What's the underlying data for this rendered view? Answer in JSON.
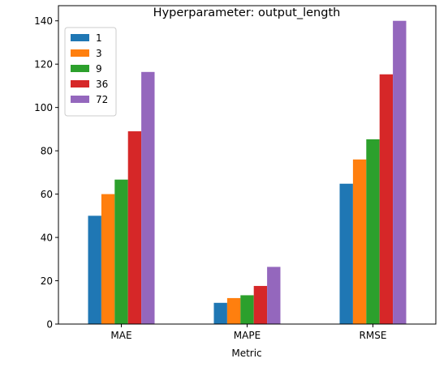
{
  "chart_data": {
    "type": "bar",
    "title": "Hyperparameter: output_length",
    "xlabel": "Metric",
    "ylabel": "",
    "categories": [
      "MAE",
      "MAPE",
      "RMSE"
    ],
    "ylim": [
      0,
      147
    ],
    "yticks": [
      0,
      20,
      40,
      60,
      80,
      100,
      120,
      140
    ],
    "grid": false,
    "legend": "top-left",
    "series": [
      {
        "name": "1",
        "color": "#1f77b4",
        "values": [
          50.0,
          9.8,
          64.8
        ]
      },
      {
        "name": "3",
        "color": "#ff7f0e",
        "values": [
          60.0,
          12.0,
          76.0
        ]
      },
      {
        "name": "9",
        "color": "#2ca02c",
        "values": [
          66.7,
          13.3,
          85.3
        ]
      },
      {
        "name": "36",
        "color": "#d62728",
        "values": [
          89.0,
          17.6,
          115.3
        ]
      },
      {
        "name": "72",
        "color": "#9467bd",
        "values": [
          116.4,
          26.4,
          140.0
        ]
      }
    ]
  }
}
